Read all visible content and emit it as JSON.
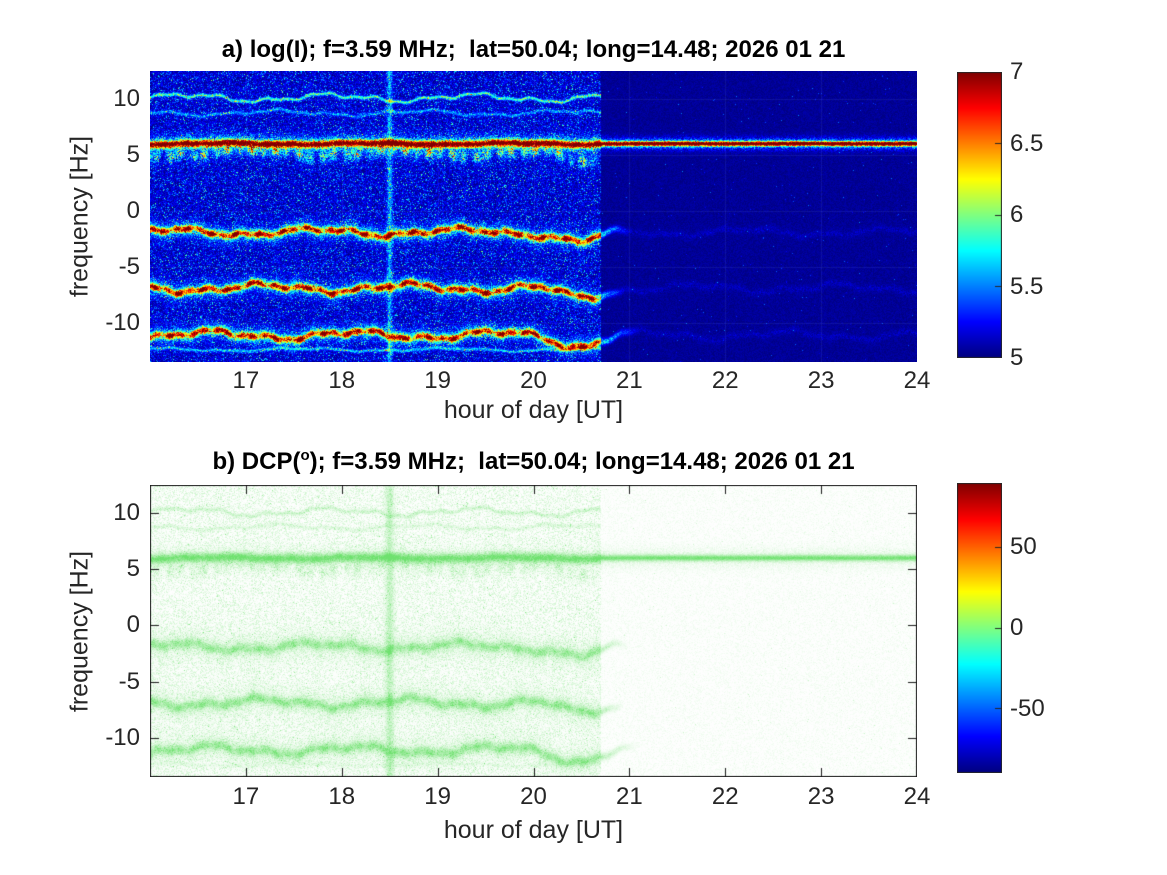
{
  "panels": {
    "a": {
      "title_pre": "a) log(I); f=3.59 MHz;  lat=50.04; long=14.48; 2026 01 21",
      "title_sup": "",
      "title_post": "",
      "xlabel": "hour of day [UT]",
      "ylabel": "frequency [Hz]"
    },
    "b": {
      "title_pre": "b) DCP(",
      "title_sup": "o",
      "title_post": "); f=3.59 MHz;  lat=50.04; long=14.48; 2026 01 21",
      "xlabel": "hour of day [UT]",
      "ylabel": "frequency [Hz]"
    }
  },
  "chart_data": [
    {
      "type": "heatmap",
      "panel": "a",
      "title": "a) log(I); f=3.59 MHz; lat=50.04; long=14.48; 2026 01 21",
      "xlabel": "hour of day [UT]",
      "ylabel": "frequency [Hz]",
      "xlim": [
        16,
        24
      ],
      "ylim": [
        -13.5,
        12.5
      ],
      "xticks": [
        17,
        18,
        19,
        20,
        21,
        22,
        23,
        24
      ],
      "yticks": [
        10,
        5,
        0,
        -5,
        -10
      ],
      "grid": true,
      "colormap": "jet",
      "colorbar": {
        "range": [
          5,
          7
        ],
        "ticks": [
          7,
          6.5,
          6,
          5.5,
          5
        ]
      },
      "background_level": 5.0,
      "noise": {
        "left_region_end_hour": 20.7,
        "left_speckle_max": 5.6,
        "right_speckle_max": 5.1
      },
      "vertical_streak": {
        "hour": 18.5,
        "level": 5.7
      },
      "bands": [
        {
          "center_freq": 10.1,
          "style": "thin",
          "level": 5.95,
          "amp": 0.5,
          "end_hour": 20.7
        },
        {
          "center_freq": 8.75,
          "style": "thin",
          "level": 5.5,
          "amp": 0.35,
          "end_hour": 20.7
        },
        {
          "center_freq": 6.0,
          "style": "carrier",
          "level": 7.05,
          "amp": 0.12,
          "end_hour": 24
        },
        {
          "center_freq": -1.9,
          "style": "wavy",
          "level": 6.95,
          "amp": 0.5,
          "end_hour": 20.7,
          "tail_end_hour": 21.0
        },
        {
          "center_freq": -6.9,
          "style": "wavy",
          "level": 7.0,
          "amp": 0.55,
          "end_hour": 20.7,
          "tail_end_hour": 20.95
        },
        {
          "center_freq": -11.1,
          "style": "wavy",
          "level": 6.95,
          "amp": 0.55,
          "end_hour": 20.7,
          "tail_end_hour": 21.1
        },
        {
          "center_freq": -12.4,
          "style": "faint",
          "level": 5.6,
          "amp": 0.2,
          "end_hour": 20.7
        }
      ]
    },
    {
      "type": "heatmap",
      "panel": "b",
      "title": "b) DCP(o); f=3.59 MHz; lat=50.04; long=14.48; 2026 01 21",
      "xlabel": "hour of day [UT]",
      "ylabel": "frequency [Hz]",
      "xlim": [
        16,
        24
      ],
      "ylim": [
        -13.5,
        12.5
      ],
      "xticks": [
        17,
        18,
        19,
        20,
        21,
        22,
        23,
        24
      ],
      "yticks": [
        10,
        5,
        0,
        -5,
        -10
      ],
      "grid": false,
      "colormap": "jet",
      "colorbar": {
        "range": [
          -90,
          90
        ],
        "ticks": [
          50,
          0,
          -50
        ]
      },
      "dcp_value_near_bands": 0,
      "tint_green": "#6ee16e",
      "noise": {
        "left_region_end_hour": 20.7
      },
      "vertical_streak": {
        "hour": 18.5
      },
      "bands": [
        {
          "center_freq": 10.1,
          "style": "thin",
          "strength": 0.35,
          "amp": 0.5,
          "end_hour": 20.7
        },
        {
          "center_freq": 8.75,
          "style": "thin",
          "strength": 0.22,
          "amp": 0.35,
          "end_hour": 20.7
        },
        {
          "center_freq": 6.0,
          "style": "carrier",
          "strength": 0.85,
          "amp": 0.12,
          "end_hour": 24
        },
        {
          "center_freq": -1.9,
          "style": "wavy",
          "strength": 0.55,
          "amp": 0.5,
          "end_hour": 20.7,
          "tail_end_hour": 21.0
        },
        {
          "center_freq": -6.9,
          "style": "wavy",
          "strength": 0.6,
          "amp": 0.55,
          "end_hour": 20.7,
          "tail_end_hour": 20.95
        },
        {
          "center_freq": -11.1,
          "style": "wavy",
          "strength": 0.6,
          "amp": 0.55,
          "end_hour": 20.7,
          "tail_end_hour": 21.1
        },
        {
          "center_freq": -12.4,
          "style": "faint",
          "strength": 0.12,
          "amp": 0.2,
          "end_hour": 20.7
        }
      ]
    }
  ]
}
